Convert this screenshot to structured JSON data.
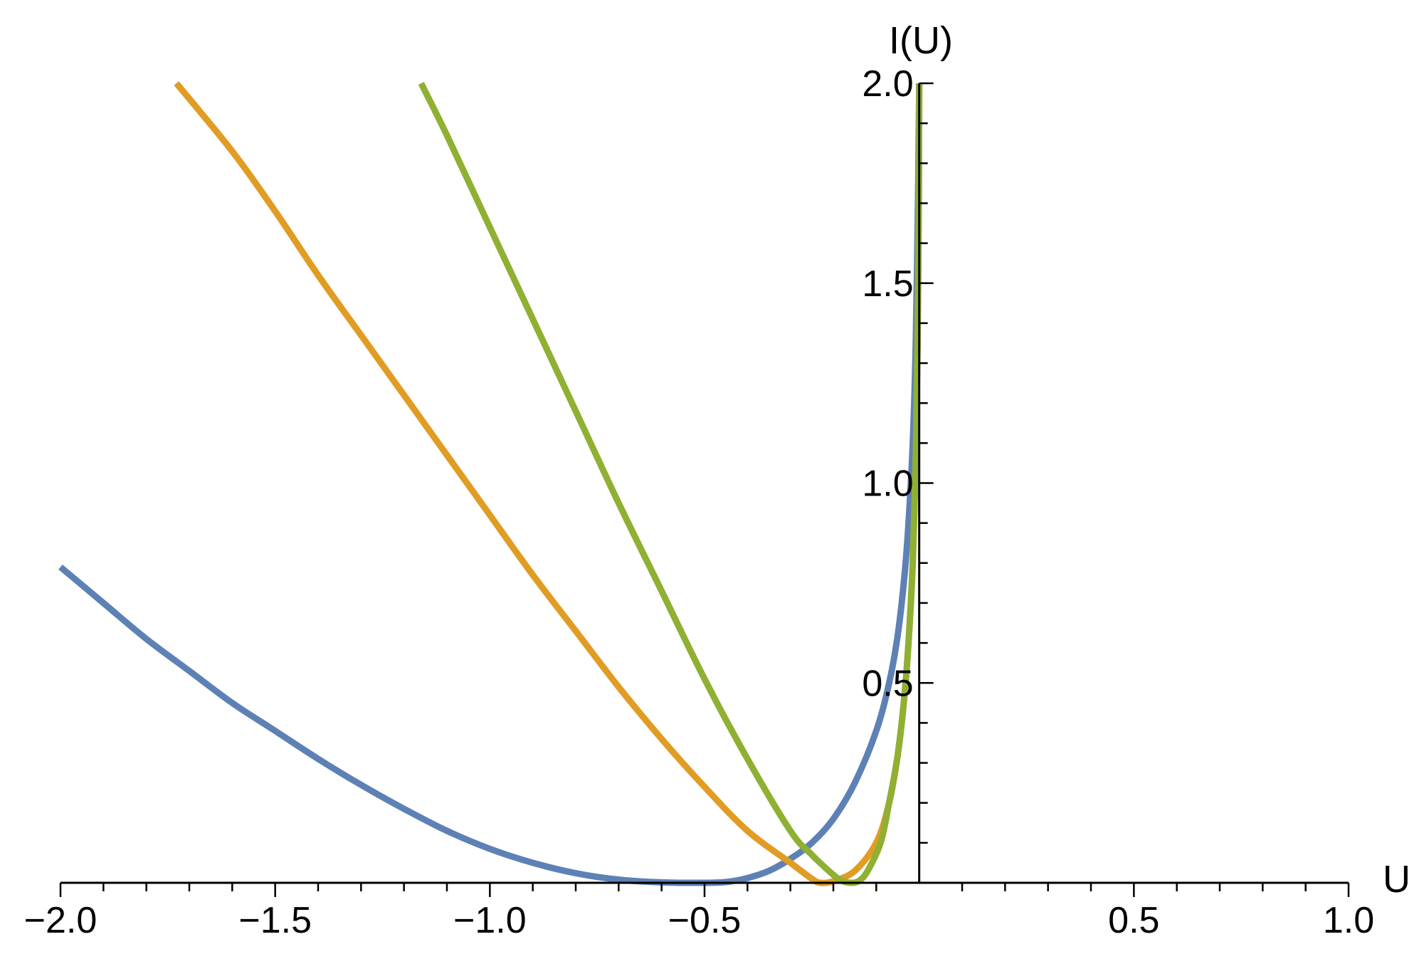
{
  "chart_data": {
    "type": "line",
    "title": "",
    "xlabel": "U",
    "ylabel": "I(U)",
    "xlim": [
      -2.0,
      1.0
    ],
    "ylim": [
      0.0,
      2.0
    ],
    "x_ticks": [
      -2.0,
      -1.5,
      -1.0,
      -0.5,
      0.5,
      1.0
    ],
    "x_tick_labels": [
      "−2.0",
      "−1.5",
      "−1.0",
      "−0.5",
      "0.5",
      "1.0"
    ],
    "y_ticks": [
      0.5,
      1.0,
      1.5,
      2.0
    ],
    "y_tick_labels": [
      "0.5",
      "1.0",
      "1.5",
      "2.0"
    ],
    "grid": false,
    "legend": "none",
    "series": [
      {
        "color": "#5E81B5",
        "points": [
          [
            -2.0,
            0.79
          ],
          [
            -1.9,
            0.7
          ],
          [
            -1.8,
            0.61
          ],
          [
            -1.7,
            0.53
          ],
          [
            -1.6,
            0.45
          ],
          [
            -1.5,
            0.38
          ],
          [
            -1.4,
            0.31
          ],
          [
            -1.3,
            0.245
          ],
          [
            -1.2,
            0.185
          ],
          [
            -1.1,
            0.13
          ],
          [
            -1.0,
            0.085
          ],
          [
            -0.9,
            0.05
          ],
          [
            -0.8,
            0.024
          ],
          [
            -0.7,
            0.008
          ],
          [
            -0.6,
            0.001
          ],
          [
            -0.5,
            0.0
          ],
          [
            -0.45,
            0.002
          ],
          [
            -0.4,
            0.012
          ],
          [
            -0.35,
            0.03
          ],
          [
            -0.3,
            0.06
          ],
          [
            -0.25,
            0.1
          ],
          [
            -0.2,
            0.16
          ],
          [
            -0.15,
            0.25
          ],
          [
            -0.1,
            0.38
          ],
          [
            -0.07,
            0.5
          ],
          [
            -0.05,
            0.62
          ],
          [
            -0.035,
            0.76
          ],
          [
            -0.025,
            0.9
          ],
          [
            -0.015,
            1.1
          ],
          [
            -0.008,
            1.35
          ],
          [
            -0.003,
            1.7
          ],
          [
            0.0,
            2.0
          ]
        ]
      },
      {
        "color": "#E19C24",
        "points": [
          [
            -1.73,
            2.0
          ],
          [
            -1.6,
            1.83
          ],
          [
            -1.5,
            1.68
          ],
          [
            -1.4,
            1.52
          ],
          [
            -1.3,
            1.37
          ],
          [
            -1.2,
            1.22
          ],
          [
            -1.1,
            1.07
          ],
          [
            -1.0,
            0.92
          ],
          [
            -0.9,
            0.77
          ],
          [
            -0.8,
            0.63
          ],
          [
            -0.7,
            0.49
          ],
          [
            -0.6,
            0.36
          ],
          [
            -0.5,
            0.24
          ],
          [
            -0.4,
            0.13
          ],
          [
            -0.3,
            0.05
          ],
          [
            -0.25,
            0.01
          ],
          [
            -0.23,
            0.0
          ],
          [
            -0.2,
            0.004
          ],
          [
            -0.15,
            0.03
          ],
          [
            -0.1,
            0.1
          ],
          [
            -0.07,
            0.2
          ],
          [
            -0.05,
            0.32
          ],
          [
            -0.035,
            0.46
          ],
          [
            -0.025,
            0.6
          ],
          [
            -0.015,
            0.8
          ],
          [
            -0.008,
            1.05
          ],
          [
            -0.004,
            1.35
          ],
          [
            -0.001,
            1.7
          ],
          [
            0.0,
            2.0
          ]
        ]
      },
      {
        "color": "#8FB032",
        "points": [
          [
            -1.16,
            2.0
          ],
          [
            -1.1,
            1.87
          ],
          [
            -1.0,
            1.64
          ],
          [
            -0.9,
            1.41
          ],
          [
            -0.8,
            1.18
          ],
          [
            -0.7,
            0.95
          ],
          [
            -0.6,
            0.73
          ],
          [
            -0.5,
            0.51
          ],
          [
            -0.4,
            0.31
          ],
          [
            -0.3,
            0.13
          ],
          [
            -0.25,
            0.07
          ],
          [
            -0.2,
            0.02
          ],
          [
            -0.18,
            0.005
          ],
          [
            -0.16,
            0.0
          ],
          [
            -0.14,
            0.005
          ],
          [
            -0.12,
            0.03
          ],
          [
            -0.09,
            0.1
          ],
          [
            -0.07,
            0.2
          ],
          [
            -0.05,
            0.32
          ],
          [
            -0.035,
            0.46
          ],
          [
            -0.025,
            0.6
          ],
          [
            -0.015,
            0.8
          ],
          [
            -0.008,
            1.05
          ],
          [
            -0.004,
            1.35
          ],
          [
            -0.001,
            1.7
          ],
          [
            0.0,
            2.0
          ]
        ]
      }
    ]
  }
}
